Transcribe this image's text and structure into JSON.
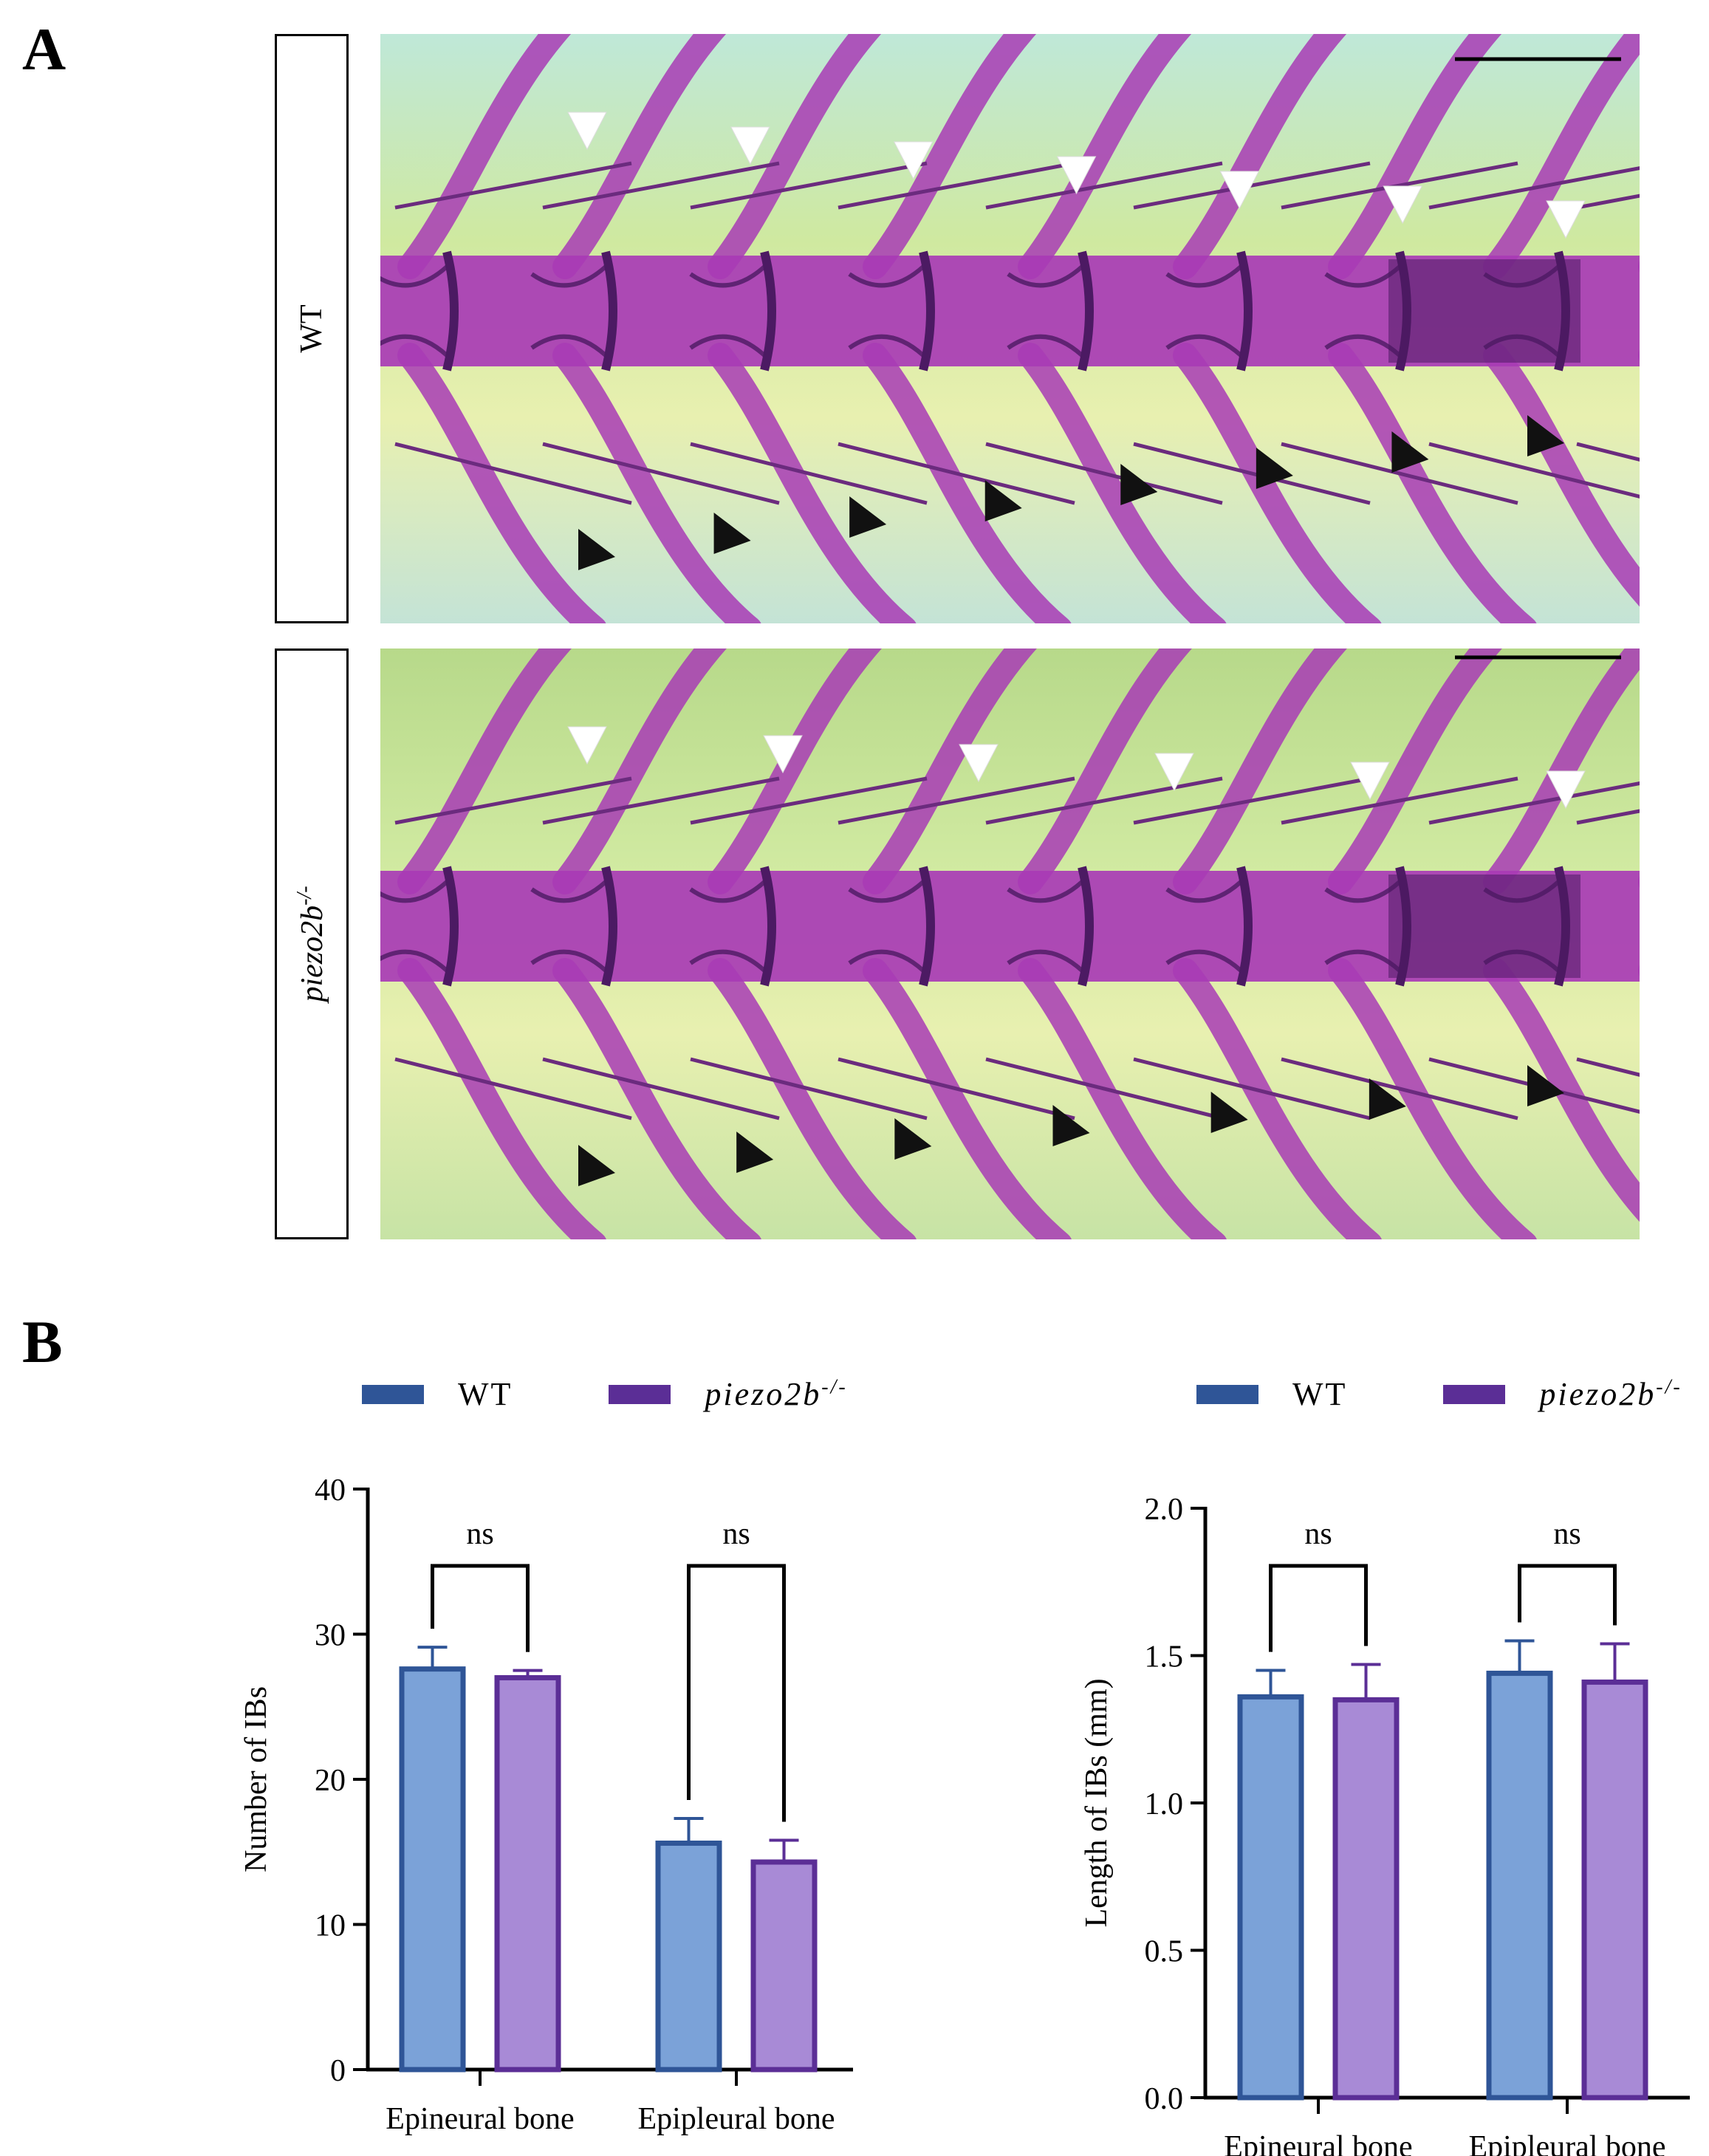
{
  "panel_a": {
    "letter": "A",
    "rows": [
      {
        "label": "WT",
        "italic": false,
        "white_arrowheads": 7,
        "black_arrowheads": 8
      },
      {
        "label": "piezo2b",
        "superscript": "-/-",
        "italic": true,
        "white_arrowheads": 6,
        "black_arrowheads": 7
      }
    ]
  },
  "panel_b": {
    "letter": "B"
  },
  "legend": {
    "wt_label": "WT",
    "mutant_label": "piezo2b",
    "mutant_superscript": "-/-"
  },
  "colors": {
    "wt_fill": "#7ba2d8",
    "wt_edge": "#2f5597",
    "mut_fill": "#a88ad6",
    "mut_edge": "#5b2e96",
    "bone": "#a83bb5",
    "bone_dark": "#4c1a63",
    "tissue": "#cfe9a0"
  },
  "chart_data": [
    {
      "type": "bar",
      "ylabel": "Number of IBs",
      "ylim": [
        0,
        40
      ],
      "yticks": [
        0,
        10,
        20,
        30,
        40
      ],
      "ytick_labels": [
        "0",
        "10",
        "20",
        "30",
        "40"
      ],
      "categories": [
        "Epineural bone",
        "Epipleural bone"
      ],
      "series": [
        {
          "name": "WT",
          "values": [
            27.6,
            15.6
          ],
          "errors": [
            1.5,
            1.7
          ]
        },
        {
          "name": "piezo2b-/-",
          "values": [
            27.0,
            14.3
          ],
          "errors": [
            0.5,
            1.5
          ]
        }
      ],
      "annotations": [
        "ns",
        "ns"
      ]
    },
    {
      "type": "bar",
      "ylabel": "Length of IBs (mm)",
      "ylim": [
        0,
        2.0
      ],
      "yticks": [
        0,
        0.5,
        1.0,
        1.5,
        2.0
      ],
      "ytick_labels": [
        "0.0",
        "0.5",
        "1.0",
        "1.5",
        "2.0"
      ],
      "categories": [
        "Epineural bone",
        "Epipleural bone"
      ],
      "series": [
        {
          "name": "WT",
          "values": [
            1.36,
            1.44
          ],
          "errors": [
            0.09,
            0.11
          ]
        },
        {
          "name": "piezo2b-/-",
          "values": [
            1.35,
            1.41
          ],
          "errors": [
            0.12,
            0.13
          ]
        }
      ],
      "annotations": [
        "ns",
        "ns"
      ]
    }
  ]
}
